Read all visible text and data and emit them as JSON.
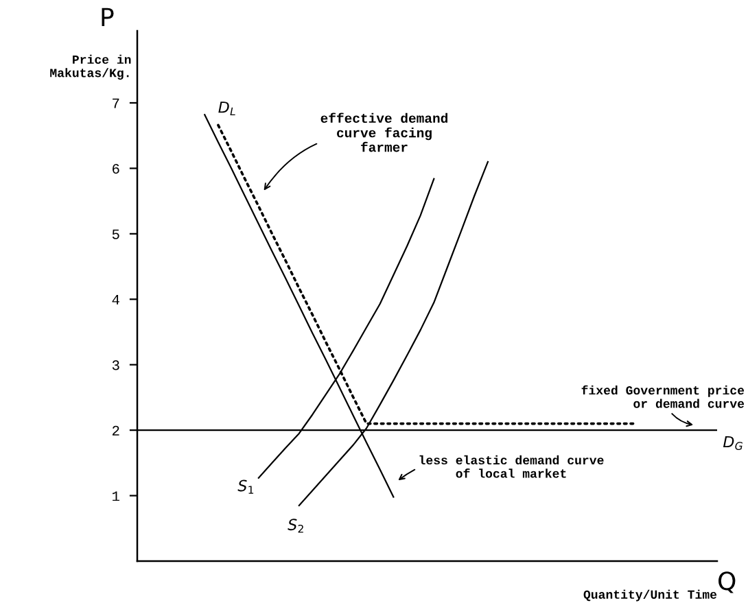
{
  "chart_data": {
    "type": "line",
    "xlabel": "Quantity/Unit Time",
    "ylabel": "Price in\nMakutas/Kg.",
    "categories": [
      null,
      null,
      null,
      null,
      null,
      null,
      null,
      null,
      null,
      null,
      null,
      null,
      null,
      null,
      null,
      null,
      null,
      null,
      null,
      null,
      null,
      null,
      null,
      null,
      null,
      null,
      null,
      null,
      null,
      null,
      null,
      null,
      null,
      null,
      null,
      null,
      null,
      null,
      null,
      null,
      null,
      null,
      null,
      null
    ],
    "ylim": [
      0,
      8.1
    ],
    "yticks": [
      1,
      2,
      3,
      4,
      5,
      6,
      7
    ],
    "tick_labels": "y",
    "grid": false,
    "marker": "none",
    "series": [
      {
        "name": "D$_{L}$",
        "color": "#000000",
        "line_style": "solid",
        "values": [
          null,
          null,
          null,
          null,
          null,
          6.82,
          6.4,
          5.99,
          5.57,
          5.15,
          4.73,
          4.32,
          3.9,
          3.48,
          3.07,
          2.65,
          2.23,
          1.81,
          1.4,
          0.98,
          null,
          null,
          null,
          null,
          null,
          null,
          null,
          null,
          null,
          null,
          null,
          null,
          null,
          null,
          null,
          null,
          null,
          null,
          null,
          null,
          null,
          null,
          null,
          null
        ]
      },
      {
        "name": "S$_{1}$",
        "color": "#000000",
        "line_style": "solid",
        "values": [
          null,
          null,
          null,
          null,
          null,
          null,
          null,
          null,
          null,
          1.27,
          1.5,
          1.73,
          1.95,
          2.24,
          2.55,
          2.86,
          3.21,
          3.57,
          3.93,
          4.37,
          4.81,
          5.28,
          5.84,
          null,
          null,
          null,
          null,
          null,
          null,
          null,
          null,
          null,
          null,
          null,
          null,
          null,
          null,
          null,
          null,
          null,
          null,
          null,
          null,
          null
        ]
      },
      {
        "name": "S$_{2}$",
        "color": "#000000",
        "line_style": "solid",
        "values": [
          null,
          null,
          null,
          null,
          null,
          null,
          null,
          null,
          null,
          null,
          null,
          null,
          0.85,
          1.08,
          1.31,
          1.54,
          1.77,
          2.03,
          2.39,
          2.76,
          3.14,
          3.53,
          3.95,
          4.49,
          5.03,
          5.58,
          6.1,
          null,
          null,
          null,
          null,
          null,
          null,
          null,
          null,
          null,
          null,
          null,
          null,
          null,
          null,
          null,
          null,
          null
        ]
      },
      {
        "color": "#000000",
        "line_style": "dotted",
        "values": [
          null,
          null,
          null,
          null,
          null,
          null,
          6.66,
          6.25,
          5.83,
          5.42,
          5.0,
          4.59,
          4.17,
          3.76,
          3.34,
          2.93,
          2.51,
          2.1,
          2.1,
          2.1,
          2.1,
          2.1,
          2.1,
          2.1,
          2.1,
          2.1,
          2.1,
          2.1,
          2.1,
          2.1,
          2.1,
          2.1,
          2.1,
          2.1,
          2.1,
          2.1,
          2.1,
          2.1,
          null,
          null,
          null,
          null,
          null,
          null
        ]
      }
    ],
    "ref_lines": [
      {
        "axis": "y",
        "value": 2,
        "label": "D$_{G}$",
        "color": "#000000",
        "line_style": "solid"
      }
    ],
    "annotations": [
      "P",
      "Q",
      "effective demand\ncurve facing\nfarmer",
      "fixed Government price\nor demand curve",
      "less elastic demand curve\nof local market"
    ]
  }
}
